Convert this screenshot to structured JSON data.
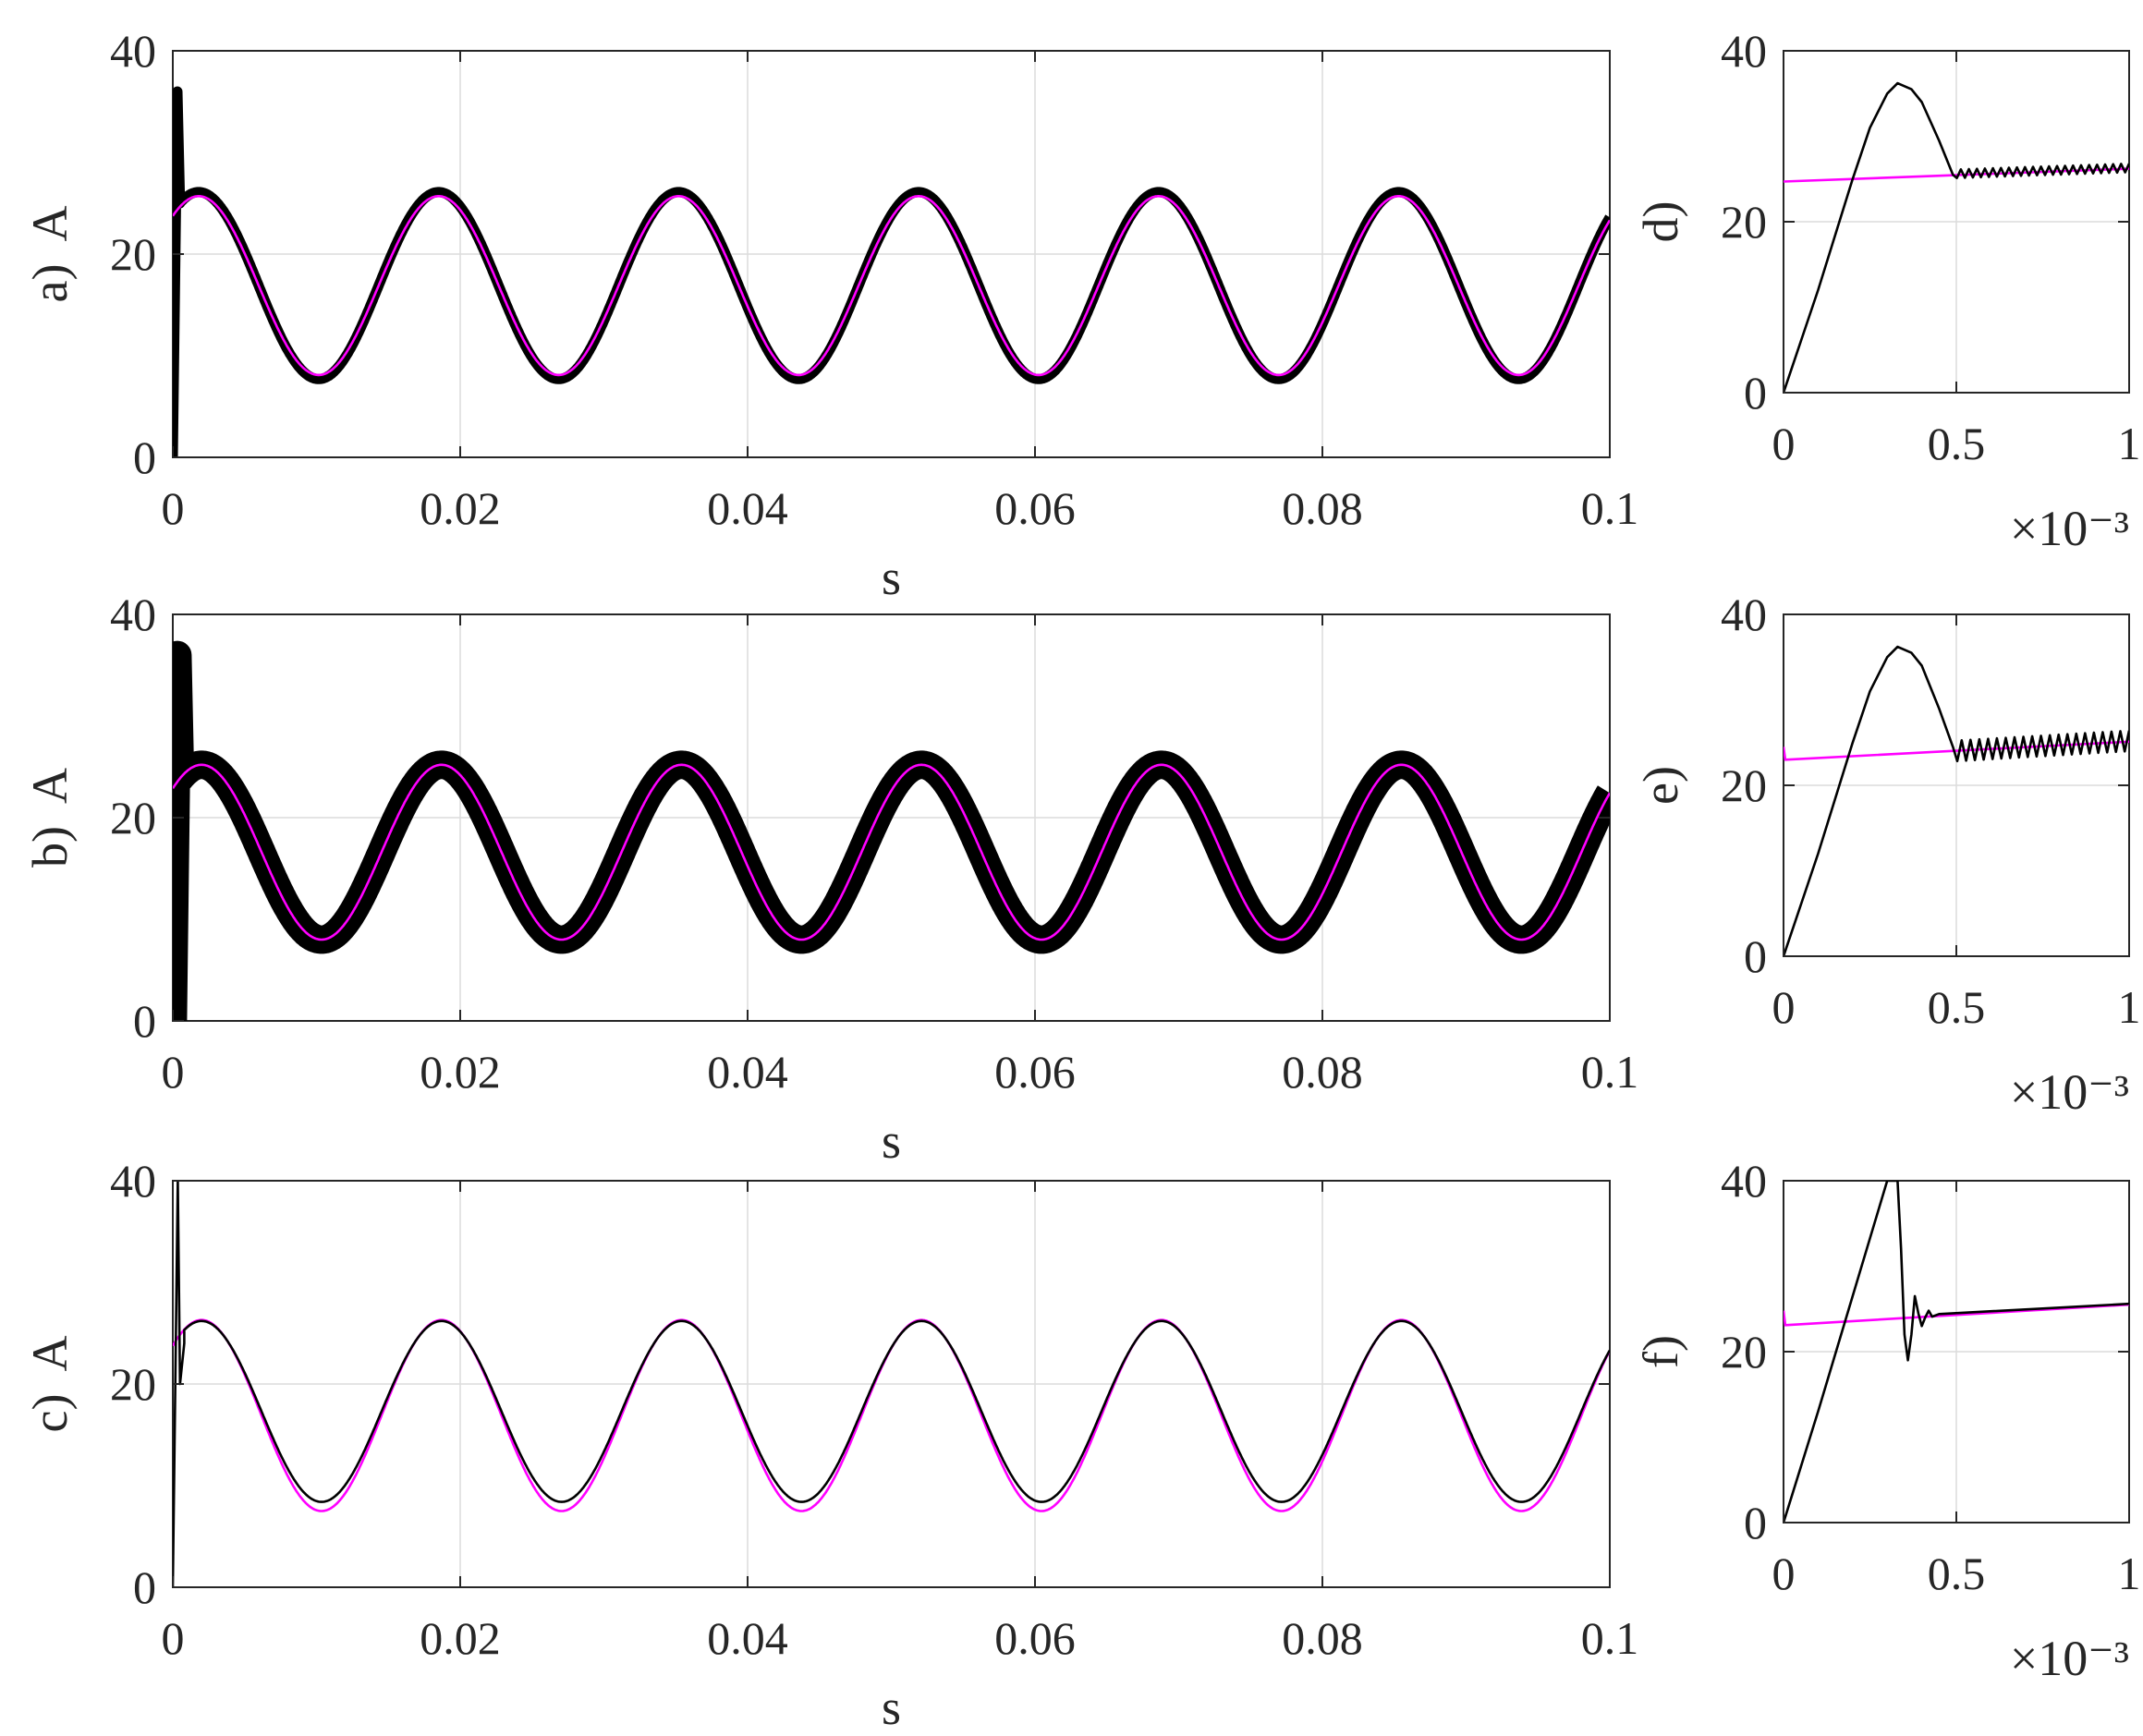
{
  "colors": {
    "measured": "#000000",
    "reference": "#ff00ff",
    "grid": "#dcdcdc",
    "axes": "#262626"
  },
  "chart_data": [
    {
      "id": "a",
      "type": "line",
      "title": "",
      "xlabel": "s",
      "ylabel": "a)  A",
      "xlim": [
        0,
        0.1
      ],
      "ylim": [
        0,
        40
      ],
      "xticks": [
        0,
        0.02,
        0.04,
        0.06,
        0.08,
        0.1
      ],
      "xtick_labels": [
        "0",
        "0.02",
        "0.04",
        "0.06",
        "0.08",
        "0.1"
      ],
      "yticks": [
        0,
        20,
        40
      ],
      "ytick_labels": [
        "0",
        "20",
        "40"
      ],
      "grid": true,
      "exponent_label": "",
      "series": [
        {
          "role": "measured",
          "color": "#000000",
          "model": "sine",
          "offset": 16.9,
          "amplitude": 9.2,
          "period": 0.0167,
          "peak_at": 0.0018,
          "ripple": 1.0,
          "startup": [
            [
              0,
              0
            ],
            [
              0.00032,
              36
            ],
            [
              0.0005,
              25
            ]
          ]
        },
        {
          "role": "reference",
          "color": "#ff00ff",
          "model": "sine",
          "offset": 16.9,
          "amplitude": 8.8,
          "period": 0.0167,
          "peak_at": 0.0018
        }
      ]
    },
    {
      "id": "b",
      "type": "line",
      "title": "",
      "xlabel": "s",
      "ylabel": "b)  A",
      "xlim": [
        0,
        0.1
      ],
      "ylim": [
        0,
        40
      ],
      "xticks": [
        0,
        0.02,
        0.04,
        0.06,
        0.08,
        0.1
      ],
      "xtick_labels": [
        "0",
        "0.02",
        "0.04",
        "0.06",
        "0.08",
        "0.1"
      ],
      "yticks": [
        0,
        20,
        40
      ],
      "ytick_labels": [
        "0",
        "20",
        "40"
      ],
      "grid": true,
      "exponent_label": "",
      "series": [
        {
          "role": "measured",
          "color": "#000000",
          "model": "sine",
          "offset": 16.6,
          "amplitude": 8.6,
          "period": 0.0167,
          "peak_at": 0.0187,
          "ripple": 2.8,
          "startup": [
            [
              0,
              0
            ],
            [
              0.00032,
              36
            ],
            [
              0.0005,
              24
            ]
          ]
        },
        {
          "role": "reference",
          "color": "#ff00ff",
          "model": "sine",
          "offset": 16.6,
          "amplitude": 8.6,
          "period": 0.0167,
          "peak_at": 0.0187
        }
      ]
    },
    {
      "id": "c",
      "type": "line",
      "title": "",
      "xlabel": "s",
      "ylabel": "c)  A",
      "xlim": [
        0,
        0.1
      ],
      "ylim": [
        0,
        40
      ],
      "xticks": [
        0,
        0.02,
        0.04,
        0.06,
        0.08,
        0.1
      ],
      "xtick_labels": [
        "0",
        "0.02",
        "0.04",
        "0.06",
        "0.08",
        "0.1"
      ],
      "yticks": [
        0,
        20,
        40
      ],
      "ytick_labels": [
        "0",
        "20",
        "40"
      ],
      "grid": true,
      "exponent_label": "",
      "series": [
        {
          "role": "reference",
          "color": "#ff00ff",
          "model": "sine",
          "offset": 16.9,
          "amplitude": 9.4,
          "period": 0.0167,
          "peak_at": 0.0187
        },
        {
          "role": "measured",
          "color": "#000000",
          "model": "sine",
          "offset": 17.3,
          "amplitude": 8.9,
          "period": 0.0167,
          "peak_at": 0.0187,
          "ripple": 0,
          "startup": [
            [
              0,
              0
            ],
            [
              0.00035,
              40
            ],
            [
              0.0005,
              20
            ],
            [
              0.0008,
              24
            ]
          ]
        }
      ]
    },
    {
      "id": "d",
      "type": "line",
      "title": "",
      "xlabel": "",
      "ylabel": "d)",
      "xlim": [
        0,
        0.001
      ],
      "ylim": [
        0,
        40
      ],
      "xticks": [
        0,
        0.0005,
        0.001
      ],
      "xtick_labels": [
        "0",
        "0.5",
        "1"
      ],
      "yticks": [
        0,
        20,
        40
      ],
      "ytick_labels": [
        "0",
        "20",
        "40"
      ],
      "grid": true,
      "exponent_label": "×10⁻³",
      "series": [
        {
          "role": "reference",
          "color": "#ff00ff",
          "model": "points",
          "points": [
            [
              0,
              24.7
            ],
            [
              0.001,
              26.2
            ]
          ]
        },
        {
          "role": "measured",
          "color": "#000000",
          "model": "points",
          "points": [
            [
              0,
              0
            ],
            [
              5e-05,
              6
            ],
            [
              0.0001,
              12
            ],
            [
              0.00015,
              18.5
            ],
            [
              0.0002,
              25
            ],
            [
              0.00025,
              31
            ],
            [
              0.0003,
              35
            ],
            [
              0.00033,
              36.2
            ],
            [
              0.00037,
              35.5
            ],
            [
              0.0004,
              34
            ],
            [
              0.00045,
              29.5
            ],
            [
              0.00049,
              25.5
            ]
          ],
          "tail": {
            "from": 0.00049,
            "to": 0.001,
            "start": 25.6,
            "end": 26.3,
            "ripple": 1.0,
            "cycles": 22
          }
        }
      ]
    },
    {
      "id": "e",
      "type": "line",
      "title": "",
      "xlabel": "",
      "ylabel": "e)",
      "xlim": [
        0,
        0.001
      ],
      "ylim": [
        0,
        40
      ],
      "xticks": [
        0,
        0.0005,
        0.001
      ],
      "xtick_labels": [
        "0",
        "0.5",
        "1"
      ],
      "yticks": [
        0,
        20,
        40
      ],
      "ytick_labels": [
        "0",
        "20",
        "40"
      ],
      "grid": true,
      "exponent_label": "×10⁻³",
      "series": [
        {
          "role": "reference",
          "color": "#ff00ff",
          "model": "points",
          "points": [
            [
              0,
              24.5
            ],
            [
              5e-06,
              23.0
            ],
            [
              0.001,
              25.1
            ]
          ]
        },
        {
          "role": "measured",
          "color": "#000000",
          "model": "points",
          "points": [
            [
              0,
              0
            ],
            [
              5e-05,
              6
            ],
            [
              0.0001,
              12
            ],
            [
              0.00015,
              18.5
            ],
            [
              0.0002,
              25
            ],
            [
              0.00025,
              31
            ],
            [
              0.0003,
              35
            ],
            [
              0.00033,
              36.2
            ],
            [
              0.00037,
              35.5
            ],
            [
              0.0004,
              34
            ],
            [
              0.00045,
              29
            ],
            [
              0.00049,
              24.5
            ]
          ],
          "tail": {
            "from": 0.00049,
            "to": 0.001,
            "start": 24.0,
            "end": 25.2,
            "ripple": 2.4,
            "cycles": 20
          }
        }
      ]
    },
    {
      "id": "f",
      "type": "line",
      "title": "",
      "xlabel": "",
      "ylabel": "f)",
      "xlim": [
        0,
        0.001
      ],
      "ylim": [
        0,
        40
      ],
      "xticks": [
        0,
        0.0005,
        0.001
      ],
      "xtick_labels": [
        "0",
        "0.5",
        "1"
      ],
      "yticks": [
        0,
        20,
        40
      ],
      "ytick_labels": [
        "0",
        "20",
        "40"
      ],
      "grid": true,
      "exponent_label": "×10⁻³",
      "series": [
        {
          "role": "reference",
          "color": "#ff00ff",
          "model": "points",
          "points": [
            [
              0,
              24.8
            ],
            [
              5e-06,
              23.1
            ],
            [
              0.001,
              25.5
            ]
          ]
        },
        {
          "role": "measured",
          "color": "#000000",
          "model": "points",
          "points": [
            [
              0,
              0
            ],
            [
              0.0001,
              13
            ],
            [
              0.0002,
              26.5
            ],
            [
              0.0003,
              40
            ],
            [
              0.00033,
              40
            ],
            [
              0.00034,
              32
            ],
            [
              0.00035,
              22
            ],
            [
              0.00036,
              19
            ],
            [
              0.00037,
              22
            ],
            [
              0.00038,
              26.5
            ],
            [
              0.00039,
              24.5
            ],
            [
              0.0004,
              23
            ],
            [
              0.00041,
              24
            ],
            [
              0.00042,
              24.8
            ],
            [
              0.00043,
              24.1
            ],
            [
              0.00045,
              24.4
            ],
            [
              0.001,
              25.6
            ]
          ]
        }
      ]
    }
  ]
}
